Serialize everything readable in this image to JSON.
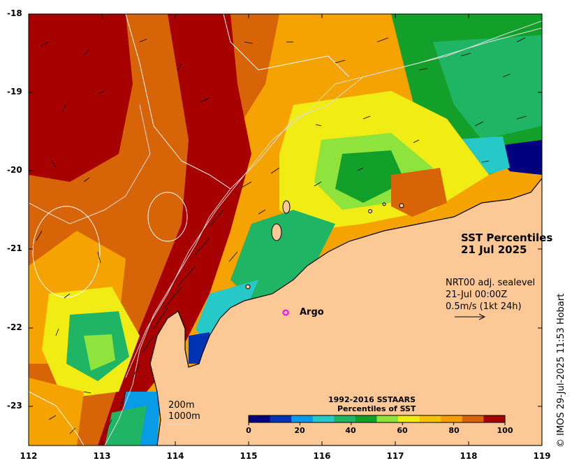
{
  "title": {
    "line1": "SST Percentiles",
    "line2": "21 Jul 2025"
  },
  "current_info": {
    "line1": "NRT00 adj. sealevel",
    "line2": "21-Jul 00:00Z",
    "line3": "0.5m/s (1kt 24h)"
  },
  "argo_label": "Argo",
  "contours": {
    "line1": "200m",
    "line2": "1000m"
  },
  "colorbar": {
    "title1": "1992-2016 SSTAARS",
    "title2": "Percentiles of SST",
    "ticks": [
      "0",
      "20",
      "40",
      "60",
      "80",
      "100"
    ],
    "colors": [
      "#00007f",
      "#0033b3",
      "#0a9be6",
      "#26c8c8",
      "#1fb565",
      "#12a02a",
      "#8ee33d",
      "#f0ec14",
      "#f5c400",
      "#f59f00",
      "#d86408",
      "#a60000"
    ]
  },
  "axes": {
    "lat_ticks": [
      "-18",
      "-19",
      "-20",
      "-21",
      "-22",
      "-23"
    ],
    "lon_ticks": [
      "112",
      "113",
      "114",
      "115",
      "116",
      "117",
      "118",
      "119"
    ]
  },
  "credit": "© IMOS 29-Jul-2025 11:53 Hobart",
  "colors": {
    "land": "#fbc896",
    "argo_marker": "#ff00ff",
    "bathymetry": "#dddddd"
  }
}
